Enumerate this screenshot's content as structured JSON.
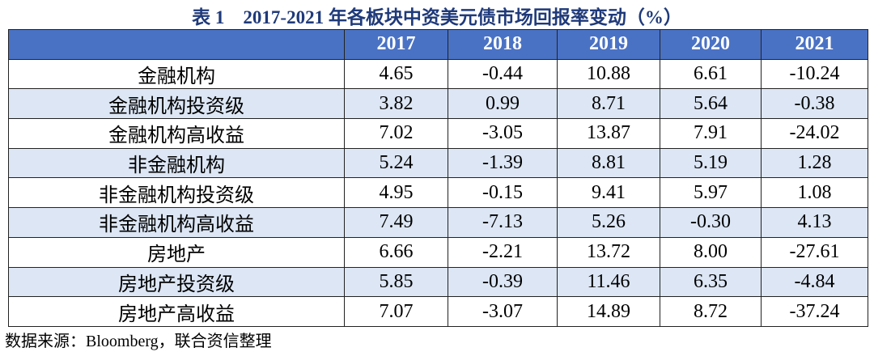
{
  "title": "表 1    2017-2021 年各板块中资美元债市场回报率变动（%）",
  "table": {
    "header": [
      "",
      "2017",
      "2018",
      "2019",
      "2020",
      "2021"
    ],
    "rows": [
      [
        "金融机构",
        "4.65",
        "-0.44",
        "10.88",
        "6.61",
        "-10.24"
      ],
      [
        "金融机构投资级",
        "3.82",
        "0.99",
        "8.71",
        "5.64",
        "-0.38"
      ],
      [
        "金融机构高收益",
        "7.02",
        "-3.05",
        "13.87",
        "7.91",
        "-24.02"
      ],
      [
        "非金融机构",
        "5.24",
        "-1.39",
        "8.81",
        "5.19",
        "1.28"
      ],
      [
        "非金融机构投资级",
        "4.95",
        "-0.15",
        "9.41",
        "5.97",
        "1.08"
      ],
      [
        "非金融机构高收益",
        "7.49",
        "-7.13",
        "5.26",
        "-0.30",
        "4.13"
      ],
      [
        "房地产",
        "6.66",
        "-2.21",
        "13.72",
        "8.00",
        "-27.61"
      ],
      [
        "房地产投资级",
        "5.85",
        "-0.39",
        "11.46",
        "6.35",
        "-4.84"
      ],
      [
        "房地产高收益",
        "7.07",
        "-3.07",
        "14.89",
        "8.72",
        "-37.24"
      ]
    ]
  },
  "source": "数据来源：Bloomberg，联合资信整理"
}
